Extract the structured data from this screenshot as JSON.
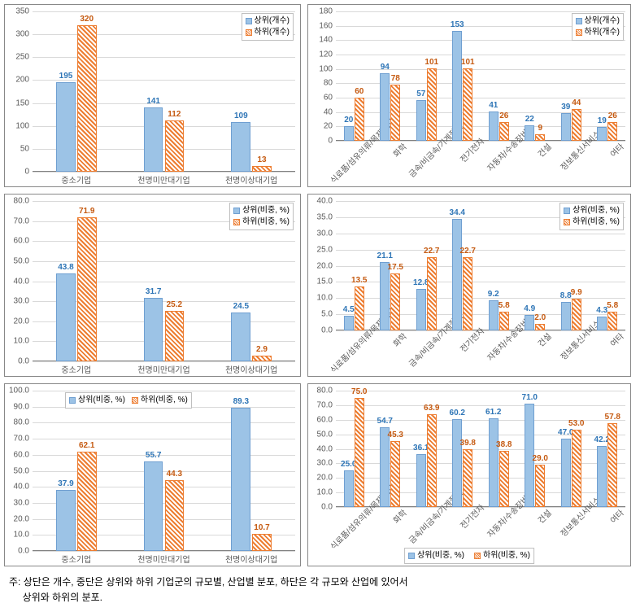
{
  "colors": {
    "blue_fill": "#9cc3e6",
    "blue_border": "#6f9fd1",
    "orange": "#ed7d31",
    "grid": "#d9d9d9",
    "text": "#595959"
  },
  "legend_labels": {
    "top_count_upper": "상위(개수)",
    "top_count_lower": "하위(개수)",
    "pct_upper": "상위(비중, %)",
    "pct_lower": "하위(비중, %)"
  },
  "left_categories": [
    "중소기업",
    "천명미만대기업",
    "천명이상대기업"
  ],
  "right_categories": [
    "식료품/섬유의류/목재/가구",
    "화학",
    "금속/비금속/기계장비",
    "전기전자",
    "자동차/수송장비",
    "건설",
    "정보통신서비스",
    "여타"
  ],
  "charts": {
    "r1c1": {
      "type": "bar",
      "ylim": [
        0,
        350
      ],
      "ytick_step": 50,
      "series": [
        {
          "name": "상위(개수)",
          "color": "blue",
          "values": [
            195,
            141,
            109
          ]
        },
        {
          "name": "하위(개수)",
          "color": "orange",
          "values": [
            320,
            112,
            13
          ]
        }
      ],
      "legend_pos": "top-right"
    },
    "r1c2": {
      "type": "bar",
      "ylim": [
        0,
        180
      ],
      "ytick_step": 20,
      "series": [
        {
          "name": "상위(개수)",
          "color": "blue",
          "values": [
            20,
            94,
            57,
            153,
            41,
            22,
            39,
            19
          ]
        },
        {
          "name": "하위(개수)",
          "color": "orange",
          "values": [
            60,
            78,
            101,
            101,
            26,
            9,
            44,
            26
          ]
        }
      ],
      "legend_pos": "top-right"
    },
    "r2c1": {
      "type": "bar",
      "ylim": [
        0,
        80
      ],
      "ytick_step": 10,
      "decimals": 1,
      "series": [
        {
          "name": "상위(비중, %)",
          "color": "blue",
          "values": [
            43.8,
            31.7,
            24.5
          ]
        },
        {
          "name": "하위(비중, %)",
          "color": "orange",
          "values": [
            71.9,
            25.2,
            2.9
          ]
        }
      ],
      "legend_pos": "top-right"
    },
    "r2c2": {
      "type": "bar",
      "ylim": [
        0,
        40
      ],
      "ytick_step": 5,
      "decimals": 1,
      "series": [
        {
          "name": "상위(비중, %)",
          "color": "blue",
          "values": [
            4.5,
            21.1,
            12.8,
            34.4,
            9.2,
            4.9,
            8.8,
            4.3
          ]
        },
        {
          "name": "하위(비중, %)",
          "color": "orange",
          "values": [
            13.5,
            17.5,
            22.7,
            22.7,
            5.8,
            2.0,
            9.9,
            5.8
          ]
        }
      ],
      "legend_pos": "top-right"
    },
    "r3c1": {
      "type": "bar",
      "ylim": [
        0,
        100
      ],
      "ytick_step": 10,
      "decimals": 1,
      "series": [
        {
          "name": "상위(비중, %)",
          "color": "blue",
          "values": [
            37.9,
            55.7,
            89.3
          ]
        },
        {
          "name": "하위(비중, %)",
          "color": "orange",
          "values": [
            62.1,
            44.3,
            10.7
          ]
        }
      ],
      "legend_pos": "top-left-inset"
    },
    "r3c2": {
      "type": "bar",
      "ylim": [
        0,
        80
      ],
      "ytick_step": 10,
      "decimals": 1,
      "series": [
        {
          "name": "상위(비중, %)",
          "color": "blue",
          "values": [
            25.0,
            54.7,
            36.1,
            60.2,
            61.2,
            71.0,
            47.0,
            42.2
          ]
        },
        {
          "name": "하위(비중, %)",
          "color": "orange",
          "values": [
            75.0,
            45.3,
            63.9,
            39.8,
            38.8,
            29.0,
            53.0,
            57.8
          ]
        }
      ],
      "legend_pos": "bottom"
    }
  },
  "footnote_label": "주:",
  "footnote_line1": "상단은 개수, 중단은 상위와 하위 기업군의 규모별, 산업별 분포, 하단은 각 규모와 산업에 있어서",
  "footnote_line2": "상위와 하위의 분포."
}
